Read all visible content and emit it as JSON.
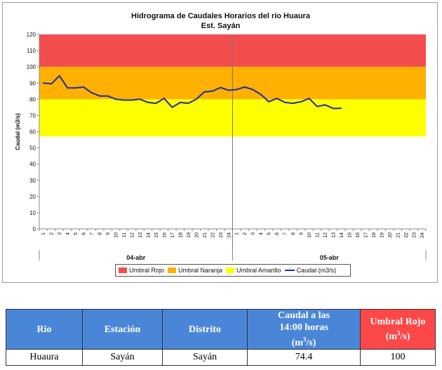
{
  "chart_data": {
    "type": "line",
    "title": "Hidrograma de Caudales Horarios del río Huaura",
    "subtitle": "Est. Sayán",
    "ylabel": "Caudal  (m3/s)",
    "xlabel": "",
    "ylim": [
      0,
      120
    ],
    "yticks": [
      0,
      10,
      20,
      30,
      40,
      50,
      60,
      70,
      80,
      90,
      100,
      110,
      120
    ],
    "x_tick_labels": [
      "1",
      "2",
      "3",
      "4",
      "5",
      "6",
      "7",
      "8",
      "9",
      "10",
      "11",
      "12",
      "13",
      "14",
      "15",
      "16",
      "17",
      "18",
      "19",
      "20",
      "21",
      "22",
      "23",
      "24",
      "1",
      "2",
      "3",
      "4",
      "5",
      "6",
      "7",
      "8",
      "9",
      "10",
      "11",
      "12",
      "13",
      "14",
      "15",
      "16",
      "17",
      "18",
      "19",
      "20",
      "21",
      "22",
      "23",
      "24"
    ],
    "day_groups": [
      {
        "label": "04-abr",
        "start_hour": 1,
        "end_hour": 24
      },
      {
        "label": "05-abr",
        "start_hour": 25,
        "end_hour": 48
      }
    ],
    "threshold_bands": [
      {
        "name": "Umbral Rojo",
        "from": 100,
        "to": 120,
        "color": "#f44d4d"
      },
      {
        "name": "Umbral Naranja",
        "from": 80,
        "to": 100,
        "color": "#ffb000"
      },
      {
        "name": "Umbral Amarillo",
        "from": 57,
        "to": 80,
        "color": "#ffff00"
      }
    ],
    "series": [
      {
        "name": "Caudal (m3/s)",
        "color": "#1a2eaa",
        "x": [
          1,
          2,
          3,
          4,
          5,
          6,
          7,
          8,
          9,
          10,
          11,
          12,
          13,
          14,
          15,
          16,
          17,
          18,
          19,
          20,
          21,
          22,
          23,
          24,
          25,
          26,
          27,
          28,
          29,
          30,
          31,
          32,
          33,
          34,
          35,
          36,
          37,
          38
        ],
        "values": [
          90,
          89.5,
          94.5,
          87,
          87,
          87.5,
          84,
          82,
          82,
          80,
          79.5,
          79.5,
          80,
          78,
          77.5,
          80.5,
          75,
          78,
          77.5,
          80,
          84.5,
          85,
          87.2,
          85.5,
          86,
          87.5,
          86,
          83,
          78.5,
          80.5,
          78,
          77.5,
          78.5,
          80.5,
          75.5,
          76.5,
          74.3,
          74.4
        ]
      }
    ],
    "legend_position": "bottom",
    "grid": false
  },
  "legend": {
    "items": [
      {
        "label": "Umbral Rojo",
        "color": "#f44d4d"
      },
      {
        "label": "Umbral Naranja",
        "color": "#ffb000"
      },
      {
        "label": "Umbral Amarillo",
        "color": "#ffff00"
      },
      {
        "label": "Caudal (m3/s)",
        "color": "#1a2eaa"
      }
    ]
  },
  "table": {
    "headers": {
      "rio": "Rio",
      "estacion": "Estación",
      "distrito": "Distrito",
      "caudal_line1": "Caudal a las",
      "caudal_line2": "14:00 horas",
      "caudal_unit_pre": "(m",
      "caudal_unit_sup": "3",
      "caudal_unit_post": "/s)",
      "umbral_line1": "Umbral Rojo",
      "umbral_unit_pre": "(m",
      "umbral_unit_sup": "3",
      "umbral_unit_post": "/s)"
    },
    "row": {
      "rio": "Huaura",
      "estacion": "Sayán",
      "distrito": "Sayán",
      "caudal": "74.4",
      "umbral_rojo": "100"
    }
  }
}
